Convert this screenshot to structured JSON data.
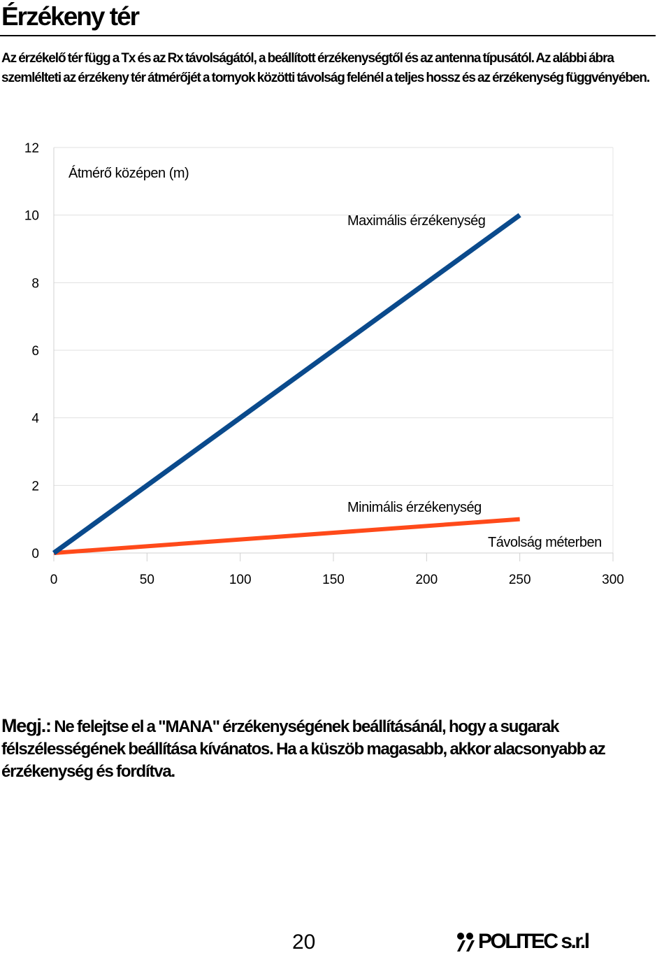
{
  "page": {
    "title": "Érzékeny tér",
    "intro": "Az érzékelő tér függ a Tx és az Rx távolságától, a beállított érzékenységtől és az antenna típusától. Az alábbi ábra szemlélteti az érzékeny tér átmérőjét a tornyok közötti távolság felénél a teljes hossz és az érzékenység függvényében.",
    "note_lead": "Megj.:",
    "note_text": " Ne felejtse el a \"MANA\" érzékenységének beállításánál, hogy a sugarak félszélességének beállítása kívánatos. Ha a küszöb magasabb, akkor alacsonyabb az érzékenység és fordítva.",
    "page_number": "20",
    "logo": {
      "name": "POLITEC s.r.l",
      "icon": "politec-logo-icon"
    }
  },
  "chart_data": {
    "type": "line",
    "ylabel": "Átmérő középen (m)",
    "xlabel": "Távolság méterben",
    "xlim": [
      0,
      300
    ],
    "ylim": [
      0,
      12
    ],
    "xticks": [
      0,
      50,
      100,
      150,
      200,
      250,
      300
    ],
    "yticks": [
      0,
      2,
      4,
      6,
      8,
      10,
      12
    ],
    "grid": true,
    "series": [
      {
        "name": "Maximális érzékenység",
        "color": "#0a4a8c",
        "x": [
          0,
          250
        ],
        "y": [
          0,
          10
        ]
      },
      {
        "name": "Minimális érzékenység",
        "color": "#ff4a1a",
        "x": [
          0,
          250
        ],
        "y": [
          0,
          1
        ]
      }
    ]
  }
}
